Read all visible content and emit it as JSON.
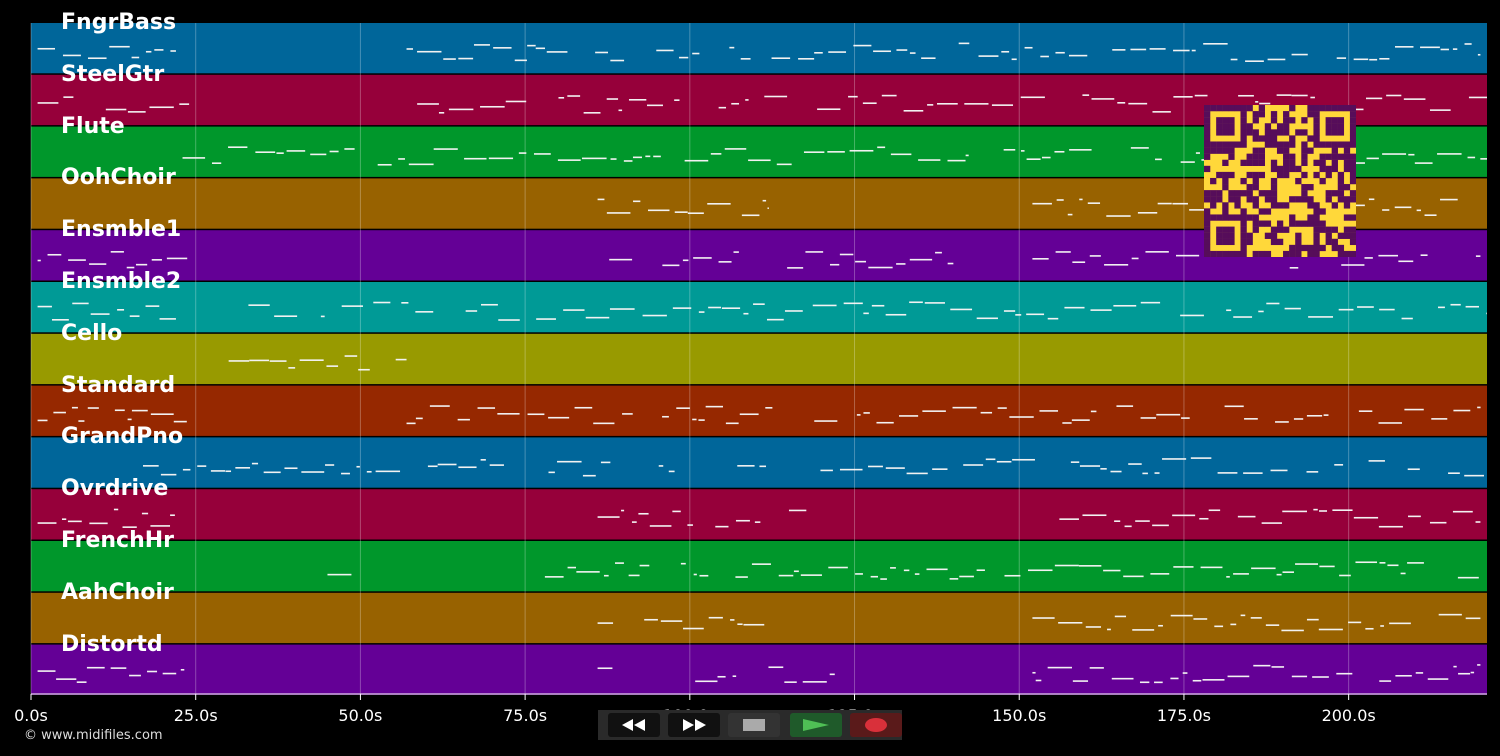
{
  "chart_data": {
    "type": "piano-roll",
    "time_unit": "s",
    "x_range": [
      0,
      221
    ],
    "tracks": [
      {
        "name": "FngrBass",
        "color": "#00669a",
        "note_spans": [
          [
            1,
            22
          ],
          [
            57,
            220
          ]
        ]
      },
      {
        "name": "SteelGtr",
        "color": "#96003a",
        "note_spans": [
          [
            1,
            24
          ],
          [
            57,
            221
          ]
        ]
      },
      {
        "name": "Flute",
        "color": "#00972b",
        "note_spans": [
          [
            23,
            221
          ]
        ]
      },
      {
        "name": "OohChoir",
        "color": "#986200",
        "note_spans": [
          [
            86,
            112
          ],
          [
            152,
            220
          ]
        ]
      },
      {
        "name": "Ensmble1",
        "color": "#640096",
        "note_spans": [
          [
            1,
            24
          ],
          [
            86,
            140
          ],
          [
            152,
            220
          ]
        ]
      },
      {
        "name": "Ensmble2",
        "color": "#009a96",
        "note_spans": [
          [
            1,
            22
          ],
          [
            33,
            221
          ]
        ]
      },
      {
        "name": "Cello",
        "color": "#989a00",
        "note_spans": [
          [
            30,
            57
          ]
        ]
      },
      {
        "name": "Standard",
        "color": "#962800",
        "note_spans": [
          [
            1,
            24
          ],
          [
            57,
            221
          ]
        ]
      },
      {
        "name": "GrandPno",
        "color": "#00669a",
        "note_spans": [
          [
            17,
            221
          ]
        ]
      },
      {
        "name": "Ovrdrive",
        "color": "#96003a",
        "note_spans": [
          [
            1,
            24
          ],
          [
            86,
            122
          ],
          [
            152,
            220
          ]
        ]
      },
      {
        "name": "FrenchHr",
        "color": "#00972b",
        "note_spans": [
          [
            45,
            49
          ],
          [
            78,
            220
          ]
        ]
      },
      {
        "name": "AahChoir",
        "color": "#986200",
        "note_spans": [
          [
            86,
            112
          ],
          [
            152,
            220
          ]
        ]
      },
      {
        "name": "Distortd",
        "color": "#640096",
        "note_spans": [
          [
            1,
            24
          ],
          [
            86,
            122
          ],
          [
            152,
            220
          ]
        ]
      }
    ],
    "ticks": [
      {
        "value": 0,
        "label": "0.0s"
      },
      {
        "value": 25,
        "label": "25.0s"
      },
      {
        "value": 50,
        "label": "50.0s"
      },
      {
        "value": 75,
        "label": "75.0s"
      },
      {
        "value": 100,
        "label": "100.0s"
      },
      {
        "value": 125,
        "label": "125.0s"
      },
      {
        "value": 150,
        "label": "150.0s"
      },
      {
        "value": 175,
        "label": "175.0s"
      },
      {
        "value": 200,
        "label": "200.0s"
      }
    ],
    "grid": true
  },
  "footer": {
    "copyright": "© www.midifiles.com"
  },
  "transport": {
    "rewind_icon": "rewind-icon",
    "fast_forward_icon": "fast-forward-icon",
    "stop_icon": "stop-icon",
    "play_icon": "play-icon",
    "record_icon": "record-icon",
    "colors": {
      "play_bg": "#1f5a2a",
      "play": "#4fbf55",
      "record_bg": "#5a1a1a",
      "record": "#d9303a"
    }
  },
  "qr_code": {
    "fg": "#560d5a",
    "bg": "#ffd83a"
  }
}
